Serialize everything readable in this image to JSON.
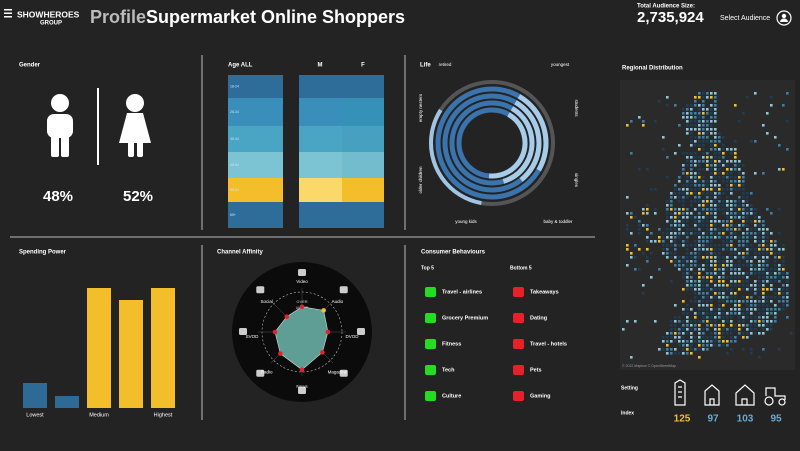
{
  "header": {
    "logo": "SHOWHEROES",
    "logo_sub": "GROUP",
    "profile_label": "Profile:",
    "title": "Supermarket Online Shoppers",
    "audience_label": "Total Audience Size:",
    "audience_size": "2,735,924",
    "select": "Select Audience"
  },
  "gender": {
    "title": "Gender",
    "male": "48%",
    "female": "52%"
  },
  "age": {
    "title": "Age ALL",
    "m": "M",
    "f": "F",
    "bands": [
      "18-24",
      "25-34",
      "35-44",
      "45-54",
      "55-64",
      "65+"
    ]
  },
  "life": {
    "title": "Life",
    "labels": [
      "retired",
      "youngest",
      "students",
      "singles",
      "baby & toddler",
      "young kids",
      "older children",
      "empty nesters"
    ]
  },
  "map": {
    "title": "Regional Distribution",
    "credit": "© 2022 Mapbox © OpenStreetMap"
  },
  "chart_data": [
    {
      "type": "bar",
      "title": "Spending Power",
      "categories": [
        "Lowest",
        null,
        "Medium",
        null,
        "Highest"
      ],
      "values": [
        25,
        12,
        120,
        108,
        120
      ],
      "colors": [
        "#2d6b96",
        "#2d6b96",
        "#f4be2a",
        "#f4be2a",
        "#f4be2a"
      ]
    },
    {
      "type": "radar",
      "title": "Channel Affinity",
      "over": "OVER",
      "under": "UNDER",
      "categories": [
        "Video",
        "Audio",
        "DVOD",
        "Magazine",
        "News",
        "Radio",
        "SVOD",
        "Social"
      ],
      "values": [
        70,
        85,
        72,
        80,
        105,
        85,
        75,
        60
      ],
      "colors": [
        "#e8202a",
        "#f4be2a",
        "#e8202a",
        "#e8202a",
        "#e8202a",
        "#e8202a",
        "#e8202a",
        "#e8202a"
      ]
    }
  ],
  "behaviours": {
    "title": "Consumer Behaviours",
    "top_title": "Top 5",
    "top": [
      "Travel - airlines",
      "Grocery Premium",
      "Fitness",
      "Tech",
      "Culture"
    ],
    "bottom_title": "Bottom 5",
    "bottom": [
      "Takeaways",
      "Dating",
      "Travel - hotels",
      "Pets",
      "Gaming"
    ]
  },
  "setting": {
    "setting": "Setting",
    "index_label": "Index",
    "index": [
      "125",
      "97",
      "103",
      "95"
    ]
  }
}
